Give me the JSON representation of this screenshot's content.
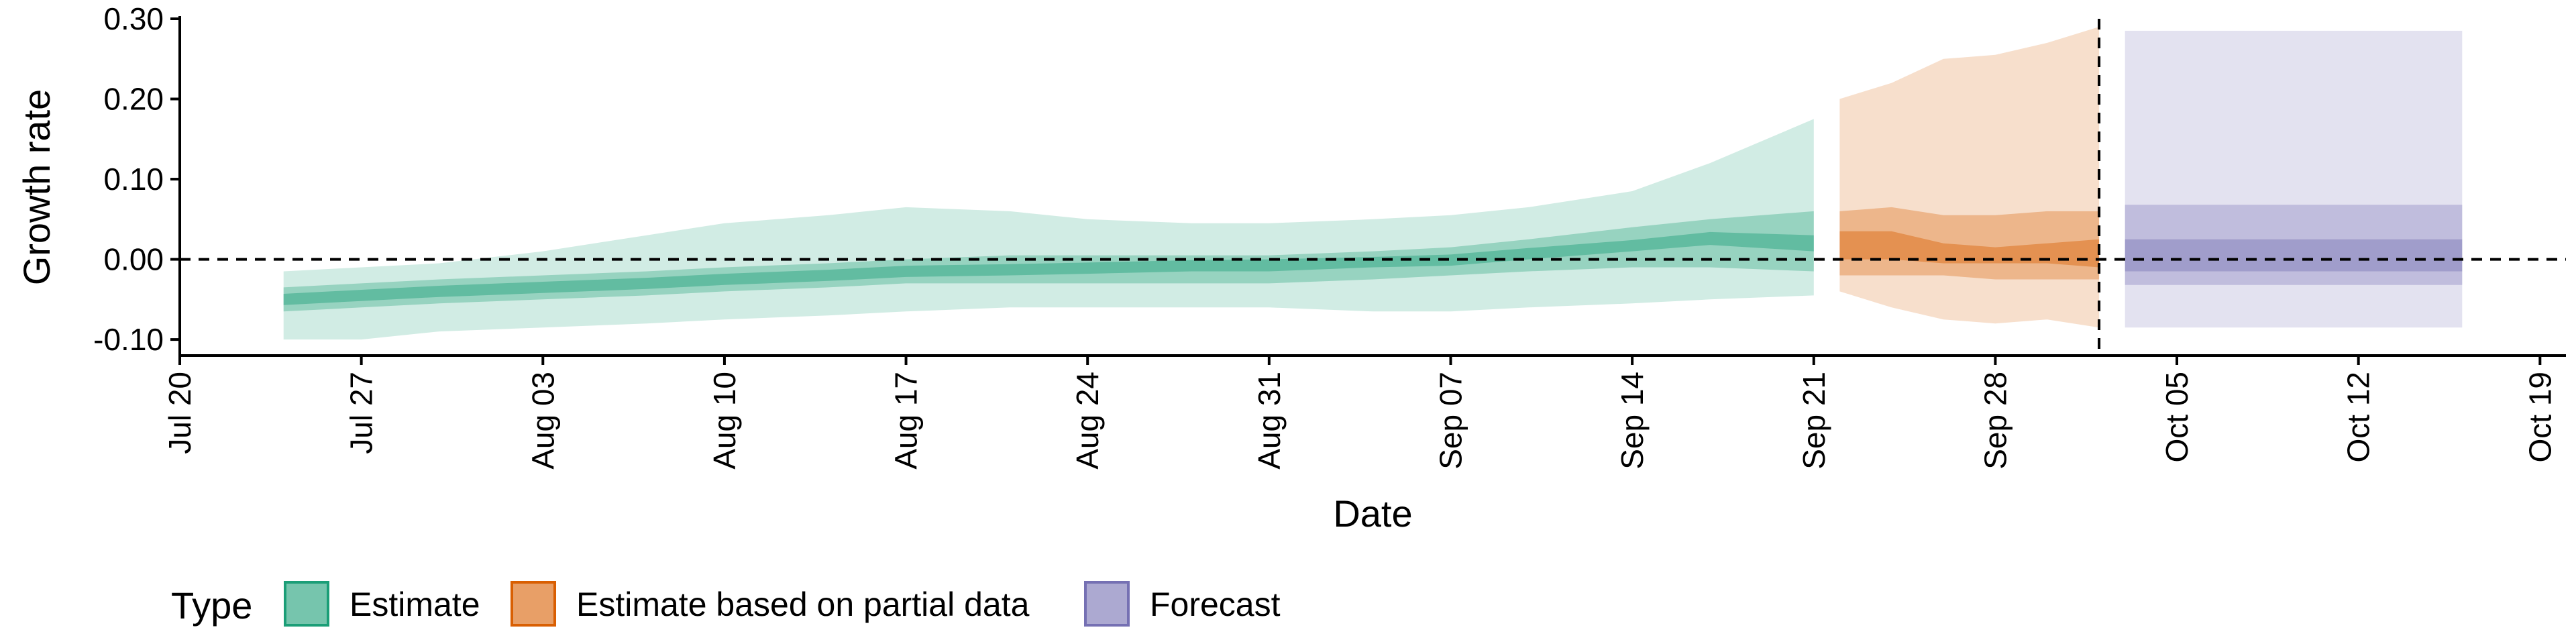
{
  "chart_data": {
    "type": "area",
    "xlabel": "Date",
    "ylabel": "Growth rate",
    "y_ticks": [
      "-0.10",
      "0.00",
      "0.10",
      "0.20",
      "0.30"
    ],
    "y_tick_values": [
      -0.1,
      0.0,
      0.1,
      0.2,
      0.3
    ],
    "ylim": [
      -0.12,
      0.3
    ],
    "xlim": [
      "2020-07-20",
      "2020-10-20"
    ],
    "x_ticks": [
      "Jul 20",
      "Jul 27",
      "Aug 03",
      "Aug 10",
      "Aug 17",
      "Aug 24",
      "Aug 31",
      "Sep 07",
      "Sep 14",
      "Sep 21",
      "Sep 28",
      "Oct 05",
      "Oct 12",
      "Oct 19"
    ],
    "x_tick_dates": [
      "2020-07-20",
      "2020-07-27",
      "2020-08-03",
      "2020-08-10",
      "2020-08-17",
      "2020-08-24",
      "2020-08-31",
      "2020-09-07",
      "2020-09-14",
      "2020-09-21",
      "2020-09-28",
      "2020-10-05",
      "2020-10-12",
      "2020-10-19"
    ],
    "reference_lines": {
      "horizontal_y": 0.0,
      "vertical_date": "2020-10-02"
    },
    "legend": {
      "title": "Type",
      "position": "bottom",
      "items": [
        {
          "label": "Estimate",
          "color": "#1b9e77"
        },
        {
          "label": "Estimate based on partial data",
          "color": "#d95f02"
        },
        {
          "label": "Forecast",
          "color": "#7570b3"
        }
      ]
    },
    "series": [
      {
        "name": "Estimate",
        "color": "#1b9e77",
        "dates": [
          "2020-07-24",
          "2020-07-27",
          "2020-07-30",
          "2020-08-03",
          "2020-08-07",
          "2020-08-10",
          "2020-08-14",
          "2020-08-17",
          "2020-08-21",
          "2020-08-24",
          "2020-08-28",
          "2020-08-31",
          "2020-09-04",
          "2020-09-07",
          "2020-09-10",
          "2020-09-14",
          "2020-09-17",
          "2020-09-21"
        ],
        "outer_low": [
          -0.1,
          -0.1,
          -0.09,
          -0.085,
          -0.08,
          -0.075,
          -0.07,
          -0.065,
          -0.06,
          -0.06,
          -0.06,
          -0.06,
          -0.065,
          -0.065,
          -0.06,
          -0.055,
          -0.05,
          -0.045
        ],
        "outer_high": [
          -0.015,
          -0.01,
          -0.005,
          0.01,
          0.03,
          0.045,
          0.055,
          0.065,
          0.06,
          0.05,
          0.045,
          0.045,
          0.05,
          0.055,
          0.065,
          0.085,
          0.12,
          0.175
        ],
        "mid_low": [
          -0.065,
          -0.06,
          -0.055,
          -0.05,
          -0.045,
          -0.04,
          -0.035,
          -0.03,
          -0.03,
          -0.03,
          -0.03,
          -0.03,
          -0.025,
          -0.02,
          -0.015,
          -0.01,
          -0.01,
          -0.015
        ],
        "mid_high": [
          -0.035,
          -0.03,
          -0.025,
          -0.02,
          -0.015,
          -0.01,
          -0.005,
          0.0,
          0.005,
          0.005,
          0.005,
          0.005,
          0.01,
          0.015,
          0.025,
          0.04,
          0.05,
          0.06
        ],
        "inner_low": [
          -0.057,
          -0.052,
          -0.047,
          -0.042,
          -0.037,
          -0.032,
          -0.027,
          -0.022,
          -0.02,
          -0.018,
          -0.015,
          -0.015,
          -0.01,
          -0.008,
          0.0,
          0.01,
          0.018,
          0.01
        ],
        "inner_high": [
          -0.043,
          -0.038,
          -0.033,
          -0.028,
          -0.023,
          -0.018,
          -0.013,
          -0.008,
          -0.006,
          -0.004,
          -0.001,
          0.0,
          0.003,
          0.006,
          0.014,
          0.024,
          0.034,
          0.03
        ]
      },
      {
        "name": "Estimate based on partial data",
        "color": "#d95f02",
        "dates": [
          "2020-09-22",
          "2020-09-24",
          "2020-09-26",
          "2020-09-28",
          "2020-09-30",
          "2020-10-02"
        ],
        "outer_low": [
          -0.04,
          -0.06,
          -0.075,
          -0.08,
          -0.075,
          -0.085
        ],
        "outer_high": [
          0.2,
          0.22,
          0.25,
          0.255,
          0.27,
          0.29
        ],
        "mid_low": [
          -0.02,
          -0.02,
          -0.02,
          -0.025,
          -0.025,
          -0.025
        ],
        "mid_high": [
          0.06,
          0.065,
          0.055,
          0.055,
          0.06,
          0.06
        ],
        "inner_low": [
          0.0,
          0.0,
          -0.005,
          -0.005,
          -0.005,
          -0.01
        ],
        "inner_high": [
          0.035,
          0.035,
          0.02,
          0.015,
          0.02,
          0.025
        ]
      },
      {
        "name": "Forecast",
        "color": "#7570b3",
        "dates": [
          "2020-10-03",
          "2020-10-16"
        ],
        "outer_low": [
          -0.085,
          -0.085
        ],
        "outer_high": [
          0.285,
          0.285
        ],
        "mid_low": [
          -0.032,
          -0.032
        ],
        "mid_high": [
          0.068,
          0.068
        ],
        "inner_low": [
          -0.015,
          -0.015
        ],
        "inner_high": [
          0.025,
          0.025
        ]
      }
    ]
  }
}
